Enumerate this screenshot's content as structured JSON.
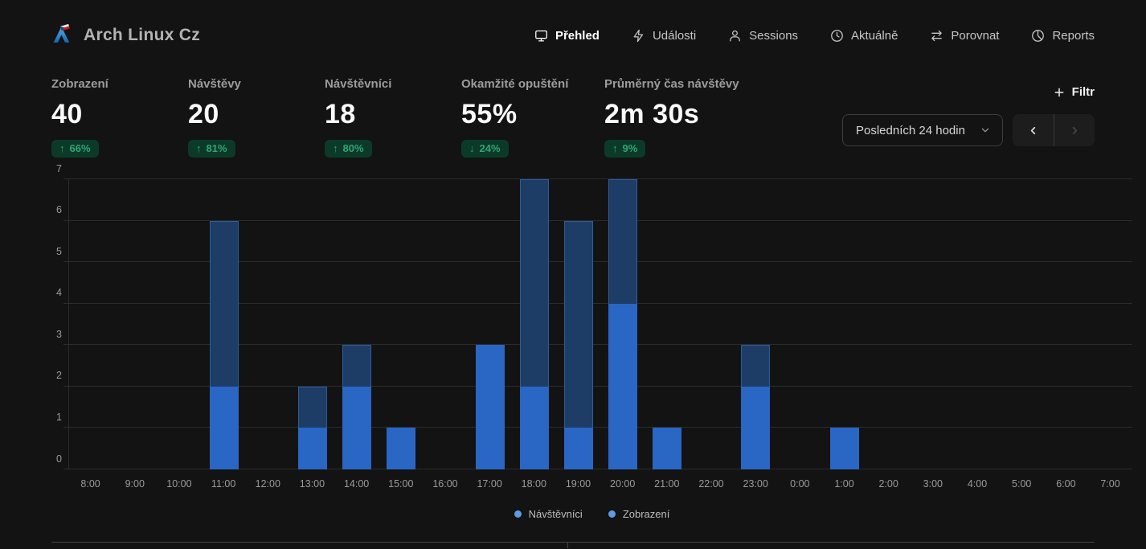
{
  "brand": {
    "title": "Arch Linux Cz",
    "logo": "arch-linux-cz-logo"
  },
  "nav": {
    "items": [
      {
        "key": "prehled",
        "label": "Přehled",
        "icon": "monitor-icon",
        "active": true
      },
      {
        "key": "udalosti",
        "label": "Události",
        "icon": "lightning-icon",
        "active": false
      },
      {
        "key": "sessions",
        "label": "Sessions",
        "icon": "user-icon",
        "active": false
      },
      {
        "key": "aktualne",
        "label": "Aktuálně",
        "icon": "clock-icon",
        "active": false
      },
      {
        "key": "porovnat",
        "label": "Porovnat",
        "icon": "compare-arrows-icon",
        "active": false
      },
      {
        "key": "reports",
        "label": "Reports",
        "icon": "pie-chart-icon",
        "active": false
      }
    ]
  },
  "stats": [
    {
      "label": "Zobrazení",
      "value": "40",
      "arrow": "↑",
      "change": "66%",
      "direction": "up"
    },
    {
      "label": "Návštěvy",
      "value": "20",
      "arrow": "↑",
      "change": "81%",
      "direction": "up"
    },
    {
      "label": "Návštěvníci",
      "value": "18",
      "arrow": "↑",
      "change": "80%",
      "direction": "up"
    },
    {
      "label": "Okamžité opuštění",
      "value": "55%",
      "arrow": "↓",
      "change": "24%",
      "direction": "down"
    },
    {
      "label": "Průměrný čas návštěvy",
      "value": "2m 30s",
      "arrow": "↑",
      "change": "9%",
      "direction": "up"
    }
  ],
  "toolbar": {
    "filter_label": "Filtr",
    "date_range": "Posledních 24 hodin"
  },
  "chart_data": {
    "type": "bar",
    "overlaid": true,
    "title": "",
    "xlabel": "",
    "ylabel": "",
    "ylim": [
      0,
      7
    ],
    "yticks": [
      0,
      1,
      2,
      3,
      4,
      5,
      6,
      7
    ],
    "grid": true,
    "legend_position": "bottom",
    "categories": [
      "8:00",
      "9:00",
      "10:00",
      "11:00",
      "12:00",
      "13:00",
      "14:00",
      "15:00",
      "16:00",
      "17:00",
      "18:00",
      "19:00",
      "20:00",
      "21:00",
      "22:00",
      "23:00",
      "0:00",
      "1:00",
      "2:00",
      "3:00",
      "4:00",
      "5:00",
      "6:00",
      "7:00"
    ],
    "series": [
      {
        "name": "Návštěvníci",
        "color": "#2a66c4",
        "values": [
          0,
          0,
          0,
          2,
          0,
          1,
          2,
          1,
          0,
          3,
          2,
          1,
          4,
          1,
          0,
          2,
          0,
          1,
          0,
          0,
          0,
          0,
          0,
          0
        ]
      },
      {
        "name": "Zobrazení",
        "color": "#1d3c66",
        "values": [
          0,
          0,
          0,
          6,
          0,
          2,
          3,
          1,
          0,
          3,
          7,
          6,
          7,
          1,
          0,
          3,
          0,
          1,
          0,
          0,
          0,
          0,
          0,
          0
        ]
      }
    ]
  },
  "legend": [
    {
      "label": "Návštěvníci",
      "color": "#5c9ce6"
    },
    {
      "label": "Zobrazení",
      "color": "#5c9ce6"
    }
  ],
  "colors": {
    "background": "#131313",
    "bar_visitors": "#2a66c4",
    "bar_views": "#1d3c66",
    "badge_bg": "#0c3a29",
    "badge_text": "#2fa572",
    "gridline": "#2b2b2b",
    "logo_blue": "#1793d1"
  }
}
